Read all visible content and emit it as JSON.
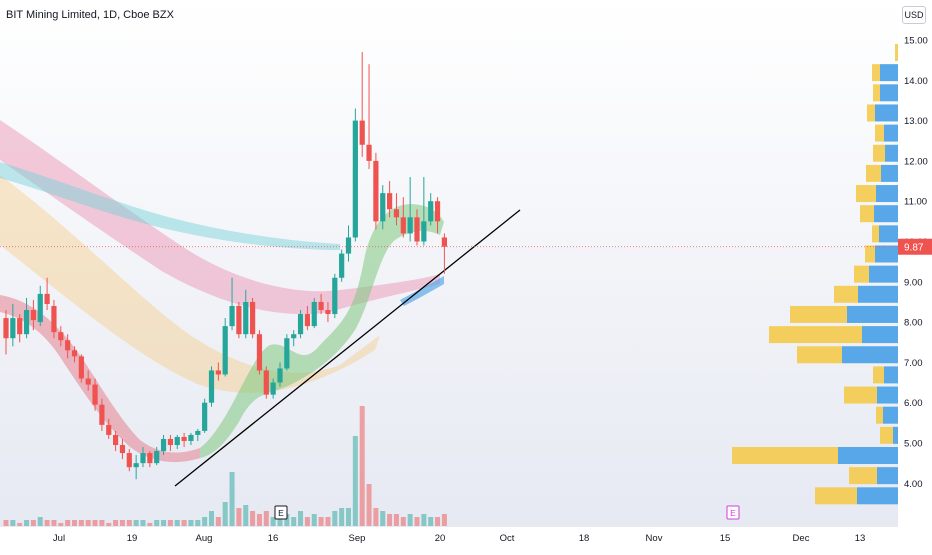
{
  "header": {
    "title": "BIT Mining Limited, 1D, Cboe BZX",
    "currency": "USD",
    "last_price": "9.87"
  },
  "chart_data": {
    "type": "candlestick",
    "price_axis": {
      "ticks": [
        "15.00",
        "14.00",
        "13.00",
        "12.00",
        "11.00",
        "10.00",
        "9.00",
        "8.00",
        "7.00",
        "6.00",
        "5.00",
        "4.00"
      ],
      "ylim": [
        3.5,
        15.3
      ]
    },
    "time_axis": {
      "ticks": [
        "Jul",
        "19",
        "Aug",
        "16",
        "Sep",
        "20",
        "Oct",
        "18",
        "Nov",
        "15",
        "Dec",
        "13"
      ]
    },
    "candles": [
      [
        8.1,
        8.3,
        7.2,
        7.6
      ],
      [
        7.6,
        8.45,
        7.4,
        8.1
      ],
      [
        8.1,
        8.2,
        7.5,
        7.7
      ],
      [
        7.7,
        8.6,
        7.6,
        8.3
      ],
      [
        8.3,
        8.55,
        7.8,
        8.05
      ],
      [
        8.0,
        8.9,
        7.9,
        8.7
      ],
      [
        8.7,
        9.1,
        8.3,
        8.45
      ],
      [
        8.4,
        8.55,
        7.6,
        7.75
      ],
      [
        7.75,
        7.9,
        7.4,
        7.55
      ],
      [
        7.55,
        7.7,
        7.1,
        7.3
      ],
      [
        7.3,
        7.4,
        7.0,
        7.15
      ],
      [
        7.15,
        7.2,
        6.5,
        6.6
      ],
      [
        6.6,
        6.8,
        6.3,
        6.45
      ],
      [
        6.45,
        6.6,
        5.8,
        5.95
      ],
      [
        5.95,
        6.1,
        5.3,
        5.45
      ],
      [
        5.45,
        5.6,
        5.1,
        5.2
      ],
      [
        5.2,
        5.3,
        4.8,
        4.95
      ],
      [
        4.95,
        5.1,
        4.6,
        4.75
      ],
      [
        4.75,
        4.85,
        4.3,
        4.4
      ],
      [
        4.4,
        4.7,
        4.1,
        4.5
      ],
      [
        4.5,
        4.9,
        4.4,
        4.75
      ],
      [
        4.75,
        4.8,
        4.4,
        4.5
      ],
      [
        4.5,
        4.9,
        4.45,
        4.8
      ],
      [
        4.8,
        5.2,
        4.7,
        5.1
      ],
      [
        5.1,
        5.2,
        4.8,
        4.95
      ],
      [
        4.95,
        5.2,
        4.85,
        5.15
      ],
      [
        5.15,
        5.25,
        4.9,
        5.05
      ],
      [
        5.05,
        5.25,
        4.95,
        5.2
      ],
      [
        5.2,
        5.35,
        5.05,
        5.3
      ],
      [
        5.3,
        6.1,
        5.25,
        6.0
      ],
      [
        6.0,
        6.9,
        5.9,
        6.8
      ],
      [
        6.8,
        7.0,
        6.55,
        6.7
      ],
      [
        6.7,
        8.1,
        6.65,
        7.9
      ],
      [
        7.9,
        9.1,
        7.8,
        8.4
      ],
      [
        8.4,
        8.5,
        7.6,
        7.7
      ],
      [
        7.7,
        8.8,
        7.6,
        8.5
      ],
      [
        8.5,
        8.6,
        7.6,
        7.7
      ],
      [
        7.7,
        7.8,
        6.7,
        6.8
      ],
      [
        6.8,
        6.9,
        6.1,
        6.2
      ],
      [
        6.2,
        6.6,
        6.1,
        6.5
      ],
      [
        6.5,
        7.0,
        6.4,
        6.85
      ],
      [
        6.85,
        7.7,
        6.8,
        7.6
      ],
      [
        7.6,
        7.8,
        7.4,
        7.7
      ],
      [
        7.7,
        8.3,
        7.6,
        8.2
      ],
      [
        8.2,
        8.4,
        7.8,
        7.9
      ],
      [
        7.9,
        8.6,
        7.85,
        8.5
      ],
      [
        8.5,
        8.7,
        8.2,
        8.3
      ],
      [
        8.3,
        8.5,
        8.0,
        8.2
      ],
      [
        8.2,
        9.2,
        8.1,
        9.1
      ],
      [
        9.1,
        9.8,
        9.0,
        9.7
      ],
      [
        9.7,
        10.4,
        9.5,
        10.1
      ],
      [
        10.1,
        13.3,
        10.0,
        13.0
      ],
      [
        13.0,
        14.7,
        12.1,
        12.4
      ],
      [
        12.4,
        14.4,
        11.8,
        12.0
      ],
      [
        12.0,
        12.2,
        10.3,
        10.5
      ],
      [
        10.5,
        11.4,
        10.3,
        11.2
      ],
      [
        11.2,
        11.5,
        10.6,
        10.8
      ],
      [
        10.8,
        11.2,
        10.4,
        10.6
      ],
      [
        10.6,
        11.1,
        10.1,
        10.2
      ],
      [
        10.2,
        11.6,
        10.0,
        10.6
      ],
      [
        10.6,
        10.8,
        9.9,
        10.0
      ],
      [
        10.0,
        11.6,
        9.9,
        10.5
      ],
      [
        10.5,
        11.2,
        10.4,
        11.0
      ],
      [
        11.0,
        11.1,
        10.2,
        10.5
      ],
      [
        10.1,
        10.2,
        9.2,
        9.87
      ]
    ],
    "volume": [
      [
        2,
        0
      ],
      [
        2,
        1
      ],
      [
        1,
        0
      ],
      [
        2,
        1
      ],
      [
        2,
        0
      ],
      [
        3,
        1
      ],
      [
        2,
        0
      ],
      [
        2,
        0
      ],
      [
        1,
        0
      ],
      [
        2,
        0
      ],
      [
        2,
        0
      ],
      [
        2,
        0
      ],
      [
        2,
        0
      ],
      [
        2,
        0
      ],
      [
        2,
        0
      ],
      [
        1,
        0
      ],
      [
        2,
        0
      ],
      [
        2,
        0
      ],
      [
        2,
        0
      ],
      [
        2,
        1
      ],
      [
        2,
        1
      ],
      [
        1,
        0
      ],
      [
        2,
        1
      ],
      [
        2,
        1
      ],
      [
        2,
        0
      ],
      [
        2,
        1
      ],
      [
        2,
        0
      ],
      [
        2,
        1
      ],
      [
        2,
        1
      ],
      [
        3,
        1
      ],
      [
        5,
        1
      ],
      [
        3,
        0
      ],
      [
        8,
        1
      ],
      [
        18,
        1
      ],
      [
        6,
        0
      ],
      [
        7,
        1
      ],
      [
        5,
        0
      ],
      [
        4,
        0
      ],
      [
        5,
        0
      ],
      [
        3,
        1
      ],
      [
        3,
        1
      ],
      [
        4,
        1
      ],
      [
        3,
        1
      ],
      [
        5,
        1
      ],
      [
        3,
        0
      ],
      [
        4,
        1
      ],
      [
        3,
        0
      ],
      [
        3,
        0
      ],
      [
        5,
        1
      ],
      [
        6,
        1
      ],
      [
        6,
        1
      ],
      [
        30,
        1
      ],
      [
        40,
        0
      ],
      [
        14,
        0
      ],
      [
        6,
        0
      ],
      [
        5,
        1
      ],
      [
        4,
        0
      ],
      [
        4,
        0
      ],
      [
        3,
        0
      ],
      [
        4,
        1
      ],
      [
        3,
        0
      ],
      [
        4,
        1
      ],
      [
        3,
        1
      ],
      [
        3,
        0
      ],
      [
        4,
        0
      ]
    ],
    "volume_profile": [
      {
        "price": "14.5",
        "up": 3,
        "down": 0
      },
      {
        "price": "14.0",
        "up": 8,
        "down": 18
      },
      {
        "price": "13.5",
        "up": 7,
        "down": 18
      },
      {
        "price": "13.0",
        "up": 8,
        "down": 23
      },
      {
        "price": "12.5",
        "up": 9,
        "down": 14
      },
      {
        "price": "12.0",
        "up": 12,
        "down": 13
      },
      {
        "price": "11.5",
        "up": 15,
        "down": 17
      },
      {
        "price": "11.0",
        "up": 20,
        "down": 22
      },
      {
        "price": "10.5",
        "up": 14,
        "down": 24
      },
      {
        "price": "10.0",
        "up": 7,
        "down": 19
      },
      {
        "price": "9.5",
        "up": 10,
        "down": 23
      },
      {
        "price": "9.0",
        "up": 15,
        "down": 29
      },
      {
        "price": "8.5",
        "up": 24,
        "down": 40
      },
      {
        "price": "8.0",
        "up": 57,
        "down": 51
      },
      {
        "price": "7.5",
        "up": 93,
        "down": 36
      },
      {
        "price": "7.0",
        "up": 45,
        "down": 56
      },
      {
        "price": "6.5",
        "up": 11,
        "down": 14
      },
      {
        "price": "6.0",
        "up": 33,
        "down": 21
      },
      {
        "price": "5.5",
        "up": 7,
        "down": 15
      },
      {
        "price": "5.0",
        "up": 13,
        "down": 5
      },
      {
        "price": "4.5",
        "up": 106,
        "down": 60
      },
      {
        "price": "4.0",
        "up": 28,
        "down": 21
      },
      {
        "price": "3.5",
        "up": 42,
        "down": 41
      }
    ],
    "markers": [
      "E",
      "E"
    ],
    "colors": {
      "up": "#26a69a",
      "down": "#ef5350",
      "profile_up": "#f5c842",
      "profile_down": "#4fa3e8",
      "price_line": "#ef5350"
    }
  }
}
